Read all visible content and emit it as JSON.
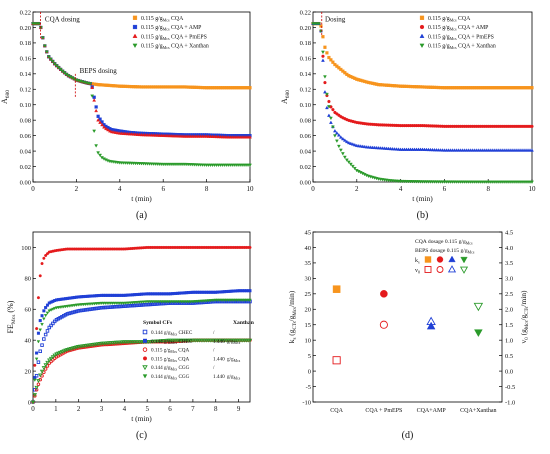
{
  "colors": {
    "orange": "#f7941d",
    "red": "#e41a1c",
    "blue": "#1f3fd6",
    "green": "#2a9a2a"
  },
  "chart_data": [
    {
      "panel_label": "(a)",
      "type": "scatter",
      "xlabel": "t (min)",
      "ylabel": "A",
      "ylabel_sub": "680",
      "xlim": [
        0,
        10
      ],
      "ylim": [
        0,
        0.22
      ],
      "xticks": [
        0,
        2,
        4,
        6,
        8,
        10
      ],
      "yticks": [
        0.0,
        0.02,
        0.04,
        0.06,
        0.08,
        0.1,
        0.12,
        0.14,
        0.16,
        0.18,
        0.2,
        0.22
      ],
      "annotations": [
        {
          "text": "CQA dosing",
          "x": 0.35,
          "y": 0.208
        },
        {
          "text": "BEPS dosing",
          "x": 2.0,
          "y": 0.137
        }
      ],
      "series": [
        {
          "name": "0.115 g/g CQA",
          "color": "orange",
          "marker": "square",
          "x": [
            0,
            0.3,
            0.35,
            0.5,
            0.7,
            1.0,
            1.3,
            1.6,
            2.0,
            2.5,
            3.0,
            4.0,
            5.0,
            6.0,
            7.0,
            8.0,
            9.0,
            10.0
          ],
          "y": [
            0.205,
            0.205,
            0.202,
            0.18,
            0.163,
            0.153,
            0.145,
            0.138,
            0.132,
            0.128,
            0.126,
            0.124,
            0.123,
            0.123,
            0.123,
            0.122,
            0.122,
            0.122
          ]
        },
        {
          "name": "0.115 g/g CQA + AMP",
          "color": "blue",
          "marker": "square",
          "x": [
            0,
            0.3,
            0.35,
            0.5,
            0.7,
            1.0,
            1.3,
            1.6,
            2.0,
            2.5,
            2.7,
            2.85,
            3.0,
            3.3,
            3.6,
            4.0,
            4.5,
            5.0,
            6.0,
            7.0,
            8.0,
            9.0,
            10.0
          ],
          "y": [
            0.205,
            0.205,
            0.202,
            0.18,
            0.163,
            0.153,
            0.145,
            0.138,
            0.132,
            0.128,
            0.127,
            0.105,
            0.085,
            0.073,
            0.068,
            0.066,
            0.064,
            0.063,
            0.062,
            0.061,
            0.061,
            0.06,
            0.06
          ]
        },
        {
          "name": "0.115 g/g CQA + PmEPS",
          "color": "red",
          "marker": "triangle",
          "x": [
            0,
            0.3,
            0.35,
            0.5,
            0.7,
            1.0,
            1.3,
            1.6,
            2.0,
            2.5,
            2.7,
            2.85,
            3.0,
            3.3,
            3.6,
            4.0,
            4.5,
            5.0,
            6.0,
            7.0,
            8.0,
            9.0,
            10.0
          ],
          "y": [
            0.205,
            0.205,
            0.202,
            0.18,
            0.163,
            0.153,
            0.145,
            0.138,
            0.132,
            0.128,
            0.127,
            0.1,
            0.08,
            0.07,
            0.065,
            0.063,
            0.062,
            0.061,
            0.06,
            0.059,
            0.059,
            0.058,
            0.058
          ]
        },
        {
          "name": "0.115 g/g CQA + Xanthan",
          "color": "green",
          "marker": "triangle-down",
          "x": [
            0,
            0.3,
            0.35,
            0.5,
            0.7,
            1.0,
            1.3,
            1.6,
            2.0,
            2.5,
            2.7,
            2.8,
            2.9,
            3.0,
            3.2,
            3.5,
            4.0,
            5.0,
            6.0,
            7.0,
            8.0,
            9.0,
            10.0
          ],
          "y": [
            0.205,
            0.205,
            0.202,
            0.18,
            0.163,
            0.153,
            0.145,
            0.138,
            0.132,
            0.128,
            0.127,
            0.07,
            0.048,
            0.038,
            0.031,
            0.027,
            0.025,
            0.024,
            0.023,
            0.023,
            0.022,
            0.022,
            0.022
          ]
        }
      ]
    },
    {
      "panel_label": "(b)",
      "type": "scatter",
      "xlabel": "t (min)",
      "ylabel": "A",
      "ylabel_sub": "680",
      "xlim": [
        0,
        10
      ],
      "ylim": [
        0,
        0.22
      ],
      "xticks": [
        0,
        2,
        4,
        6,
        8,
        10
      ],
      "yticks": [
        0.0,
        0.02,
        0.04,
        0.06,
        0.08,
        0.1,
        0.12,
        0.14,
        0.16,
        0.18,
        0.2,
        0.22
      ],
      "annotations": [
        {
          "text": "Dosing",
          "x": 0.4,
          "y": 0.208
        }
      ],
      "series": [
        {
          "name": "0.115 g/g CQA",
          "color": "orange",
          "marker": "square",
          "x": [
            0,
            0.3,
            0.4,
            0.5,
            0.7,
            1.0,
            1.3,
            1.6,
            2.0,
            2.5,
            3.0,
            4.0,
            5.0,
            6.0,
            7.0,
            8.0,
            9.0,
            10.0
          ],
          "y": [
            0.205,
            0.205,
            0.2,
            0.178,
            0.162,
            0.152,
            0.145,
            0.138,
            0.133,
            0.129,
            0.126,
            0.124,
            0.123,
            0.122,
            0.122,
            0.122,
            0.122,
            0.122
          ]
        },
        {
          "name": "0.115 g/g CQA + AMP",
          "color": "red",
          "marker": "circle",
          "x": [
            0,
            0.3,
            0.4,
            0.5,
            0.6,
            0.8,
            1.0,
            1.3,
            1.6,
            2.0,
            2.5,
            3.0,
            4.0,
            5.0,
            6.0,
            7.0,
            8.0,
            9.0,
            10.0
          ],
          "y": [
            0.205,
            0.205,
            0.19,
            0.14,
            0.115,
            0.098,
            0.09,
            0.084,
            0.08,
            0.077,
            0.075,
            0.074,
            0.073,
            0.073,
            0.072,
            0.072,
            0.072,
            0.072,
            0.072
          ]
        },
        {
          "name": "0.115 g/g CQA + PmEPS",
          "color": "blue",
          "marker": "triangle",
          "x": [
            0,
            0.3,
            0.4,
            0.5,
            0.6,
            0.8,
            1.0,
            1.3,
            1.6,
            2.0,
            2.5,
            3.0,
            4.0,
            5.0,
            6.0,
            7.0,
            8.0,
            9.0,
            10.0
          ],
          "y": [
            0.205,
            0.205,
            0.19,
            0.13,
            0.1,
            0.078,
            0.066,
            0.057,
            0.051,
            0.047,
            0.045,
            0.044,
            0.042,
            0.042,
            0.041,
            0.041,
            0.041,
            0.041,
            0.041
          ]
        },
        {
          "name": "0.115 g/g CQA + Xanthan",
          "color": "green",
          "marker": "triangle-down",
          "x": [
            0,
            0.3,
            0.4,
            0.5,
            0.6,
            0.8,
            1.0,
            1.2,
            1.5,
            2.0,
            2.5,
            3.0,
            3.5,
            4.0,
            5.0,
            6.0,
            7.0,
            8.0,
            9.0,
            10.0
          ],
          "y": [
            0.205,
            0.205,
            0.19,
            0.15,
            0.12,
            0.085,
            0.06,
            0.045,
            0.03,
            0.015,
            0.008,
            0.004,
            0.002,
            0.001,
            0.0005,
            0.0003,
            0.0002,
            0.0001,
            0.0001,
            0.0001
          ]
        }
      ]
    },
    {
      "panel_label": "(c)",
      "type": "scatter",
      "xlabel": "t (min)",
      "ylabel": "FE (%)",
      "ylabel_sub": "Mcs",
      "xlim": [
        0,
        9.5
      ],
      "ylim": [
        0,
        110
      ],
      "xticks": [
        0,
        1,
        2,
        3,
        4,
        5,
        6,
        7,
        8,
        9
      ],
      "yticks": [
        0,
        20,
        40,
        60,
        80,
        100
      ],
      "legend_headers": {
        "symbol_cfs": "Symbol CFs",
        "xanthan": "Xanthan"
      },
      "series": [
        {
          "name": "0.144 g/g CHEC",
          "xanthan": "/",
          "color": "blue",
          "marker": "square-open",
          "x": [
            0,
            0.1,
            0.2,
            0.3,
            0.5,
            0.7,
            1.0,
            1.5,
            2.0,
            3.0,
            4.0,
            5.0,
            6.0,
            7.0,
            8.0,
            9.0,
            9.5
          ],
          "y": [
            0,
            10,
            22,
            32,
            42,
            48,
            53,
            57,
            59,
            61,
            62,
            63,
            64,
            64,
            65,
            65,
            65
          ]
        },
        {
          "name": "0.144 g/g CHEC",
          "xanthan": "1.440 g/g",
          "color": "blue",
          "marker": "square",
          "x": [
            0,
            0.1,
            0.2,
            0.3,
            0.5,
            0.7,
            1.0,
            1.5,
            2.0,
            3.0,
            4.0,
            5.0,
            6.0,
            7.0,
            8.0,
            9.0,
            9.5
          ],
          "y": [
            0,
            20,
            40,
            52,
            60,
            64,
            66,
            67,
            68,
            69,
            69,
            70,
            70,
            71,
            71,
            72,
            72
          ]
        },
        {
          "name": "0.115 g/g CQA",
          "xanthan": "/",
          "color": "red",
          "marker": "circle-open",
          "x": [
            0,
            0.1,
            0.2,
            0.3,
            0.5,
            0.7,
            1.0,
            1.5,
            2.0,
            3.0,
            4.0,
            5.0,
            6.0,
            7.0,
            8.0,
            9.0,
            9.5
          ],
          "y": [
            0,
            5,
            10,
            14,
            20,
            25,
            29,
            33,
            35,
            37,
            38,
            39,
            39,
            40,
            40,
            40,
            40
          ]
        },
        {
          "name": "0.115 g/g CQA",
          "xanthan": "1.440 g/g",
          "color": "red",
          "marker": "circle",
          "x": [
            0,
            0.1,
            0.2,
            0.3,
            0.4,
            0.5,
            0.7,
            1.0,
            1.5,
            2.0,
            3.0,
            4.0,
            5.0,
            6.0,
            7.0,
            8.0,
            9.0,
            9.5
          ],
          "y": [
            0,
            30,
            60,
            80,
            90,
            94,
            97,
            98,
            99,
            99,
            99,
            99,
            100,
            100,
            100,
            100,
            100,
            100
          ]
        },
        {
          "name": "0.144 g/g CGG",
          "xanthan": "/",
          "color": "green",
          "marker": "triangle-down-open",
          "x": [
            0,
            0.1,
            0.2,
            0.3,
            0.5,
            0.7,
            1.0,
            1.5,
            2.0,
            3.0,
            4.0,
            5.0,
            6.0,
            7.0,
            8.0,
            9.0,
            9.5
          ],
          "y": [
            0,
            6,
            12,
            17,
            23,
            27,
            31,
            34,
            36,
            38,
            39,
            39,
            40,
            40,
            40,
            40,
            40
          ]
        },
        {
          "name": "0.144 g/g CGG",
          "xanthan": "1.440 g/g",
          "color": "green",
          "marker": "triangle-down",
          "x": [
            0,
            0.1,
            0.2,
            0.3,
            0.5,
            0.7,
            1.0,
            1.5,
            2.0,
            3.0,
            4.0,
            5.0,
            6.0,
            7.0,
            8.0,
            9.0,
            9.5
          ],
          "y": [
            0,
            18,
            35,
            46,
            55,
            59,
            61,
            62,
            63,
            64,
            64,
            65,
            65,
            65,
            66,
            66,
            66
          ]
        }
      ]
    },
    {
      "panel_label": "(d)",
      "type": "scatter",
      "categories": [
        "CQA",
        "CQA + PmEPS",
        "CQA+AMP",
        "CQA+Xanthan"
      ],
      "ylabel_left": "k (g /g /min)",
      "ylabel_right": "v (g /g /min)",
      "ylim_left": [
        -10,
        45
      ],
      "ylim_right": [
        -1.0,
        4.5
      ],
      "yticks_left": [
        -10,
        -5,
        0,
        5,
        10,
        15,
        20,
        25,
        30,
        35,
        40,
        45
      ],
      "yticks_right": [
        -1.0,
        -0.5,
        0.0,
        0.5,
        1.0,
        1.5,
        2.0,
        2.5,
        3.0,
        3.5,
        4.0,
        4.5
      ],
      "legend": {
        "cqa_dosage": "CQA dosage  0.115 g/g",
        "beps_dosage": "BEPS dosage  0.115 g/g",
        "k_label": "k",
        "v_label": "v"
      },
      "series": [
        {
          "name": "k",
          "axis": "left",
          "filled": true,
          "points": [
            {
              "category": "CQA",
              "value": 26.5,
              "color": "orange",
              "marker": "square"
            },
            {
              "category": "CQA + PmEPS",
              "value": 25.0,
              "color": "red",
              "marker": "circle"
            },
            {
              "category": "CQA+AMP",
              "value": 14.5,
              "color": "blue",
              "marker": "triangle"
            },
            {
              "category": "CQA+Xanthan",
              "value": 12.5,
              "color": "green",
              "marker": "triangle-down"
            }
          ]
        },
        {
          "name": "v",
          "axis": "right",
          "filled": false,
          "points": [
            {
              "category": "CQA",
              "value": 0.35,
              "color": "red",
              "marker": "square-open"
            },
            {
              "category": "CQA + PmEPS",
              "value": 1.5,
              "color": "red",
              "marker": "circle-open"
            },
            {
              "category": "CQA+AMP",
              "value": 1.6,
              "color": "blue",
              "marker": "triangle-open"
            },
            {
              "category": "CQA+Xanthan",
              "value": 2.1,
              "color": "green",
              "marker": "triangle-down-open"
            }
          ]
        }
      ]
    }
  ]
}
